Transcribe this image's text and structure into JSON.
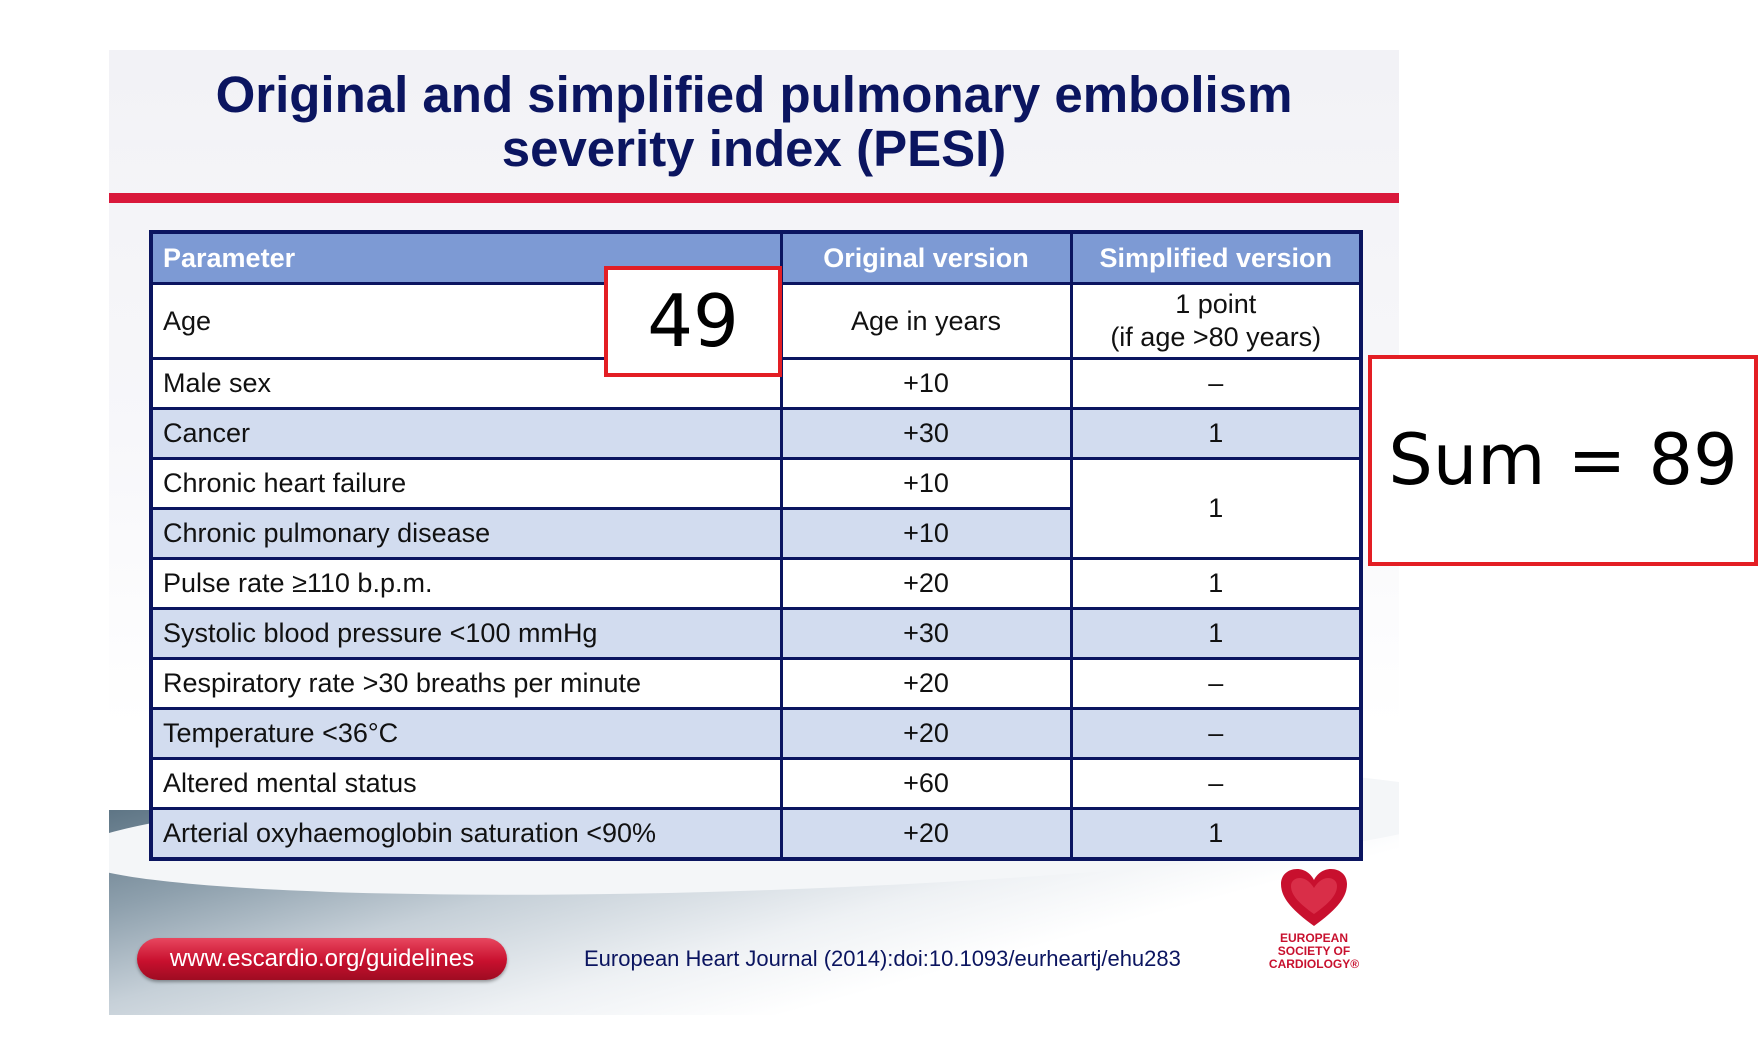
{
  "slide": {
    "title_line1": "Original and simplified pulmonary embolism",
    "title_line2": "severity index (PESI)",
    "accent_color": "#d9183b",
    "header_color": "#7d9ad4",
    "border_color": "#0b1560"
  },
  "table": {
    "headers": [
      "Parameter",
      "Original version",
      "Simplified version"
    ],
    "rows": [
      {
        "parameter": "Age",
        "original": "Age in years",
        "simplified_line1": "1 point",
        "simplified_line2": "(if age >80 years)"
      },
      {
        "parameter": "Male sex",
        "original": "+10",
        "simplified": "–"
      },
      {
        "parameter": "Cancer",
        "original": "+30",
        "simplified": "1"
      },
      {
        "parameter": "Chronic heart failure",
        "original": "+10",
        "simplified": "1"
      },
      {
        "parameter": "Chronic pulmonary disease",
        "original": "+10"
      },
      {
        "parameter": "Pulse rate ≥110 b.p.m.",
        "original": "+20",
        "simplified": "1"
      },
      {
        "parameter": "Systolic blood pressure <100 mmHg",
        "original": "+30",
        "simplified": "1"
      },
      {
        "parameter": "Respiratory rate >30 breaths per minute",
        "original": "+20",
        "simplified": "–"
      },
      {
        "parameter": "Temperature <36°C",
        "original": "+20",
        "simplified": "–"
      },
      {
        "parameter": "Altered mental status",
        "original": "+60",
        "simplified": "–"
      },
      {
        "parameter": "Arterial oxyhaemoglobin saturation <90%",
        "original": "+20",
        "simplified": "1"
      }
    ]
  },
  "footer": {
    "url": "www.escardio.org/guidelines",
    "journal_ref": "European Heart Journal (2014):doi:10.1093/eurheartj/ehu283",
    "logo_line1": "EUROPEAN",
    "logo_line2": "SOCIETY OF",
    "logo_line3": "CARDIOLOGY®"
  },
  "annotations": {
    "age_value": "49",
    "sum_text": "Sum = 89",
    "box_color": "#e31e24"
  }
}
